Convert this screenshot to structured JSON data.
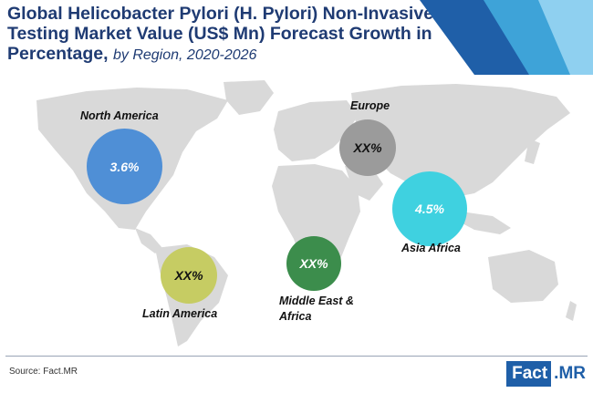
{
  "title": {
    "main": "Global Helicobacter Pylori (H. Pylori) Non-Invasive Testing Market Value (US$ Mn) Forecast Growth in Percentage,",
    "subtitle": "by Region, 2020-2026"
  },
  "regions": [
    {
      "name": "North America",
      "value": "3.6%",
      "color": "#4f8fd6"
    },
    {
      "name": "Europe",
      "value": "XX%",
      "color": "#9b9b9b"
    },
    {
      "name": "Asia Africa",
      "value": "4.5%",
      "color": "#3fd1e0"
    },
    {
      "name": "Middle East & Africa",
      "value": "XX%",
      "color": "#3c8d4c"
    },
    {
      "name": "Latin America",
      "value": "XX%",
      "color": "#c6cc63"
    }
  ],
  "footer": {
    "source": "Source: Fact.MR",
    "logo_fact": "Fact",
    "logo_mr": ".MR"
  },
  "colors": {
    "title": "#1f3b73",
    "map": "#d9d9d9",
    "accent_dark": "#1f5fa8",
    "accent_mid": "#3ea3d8",
    "accent_light": "#8fd0f0"
  }
}
